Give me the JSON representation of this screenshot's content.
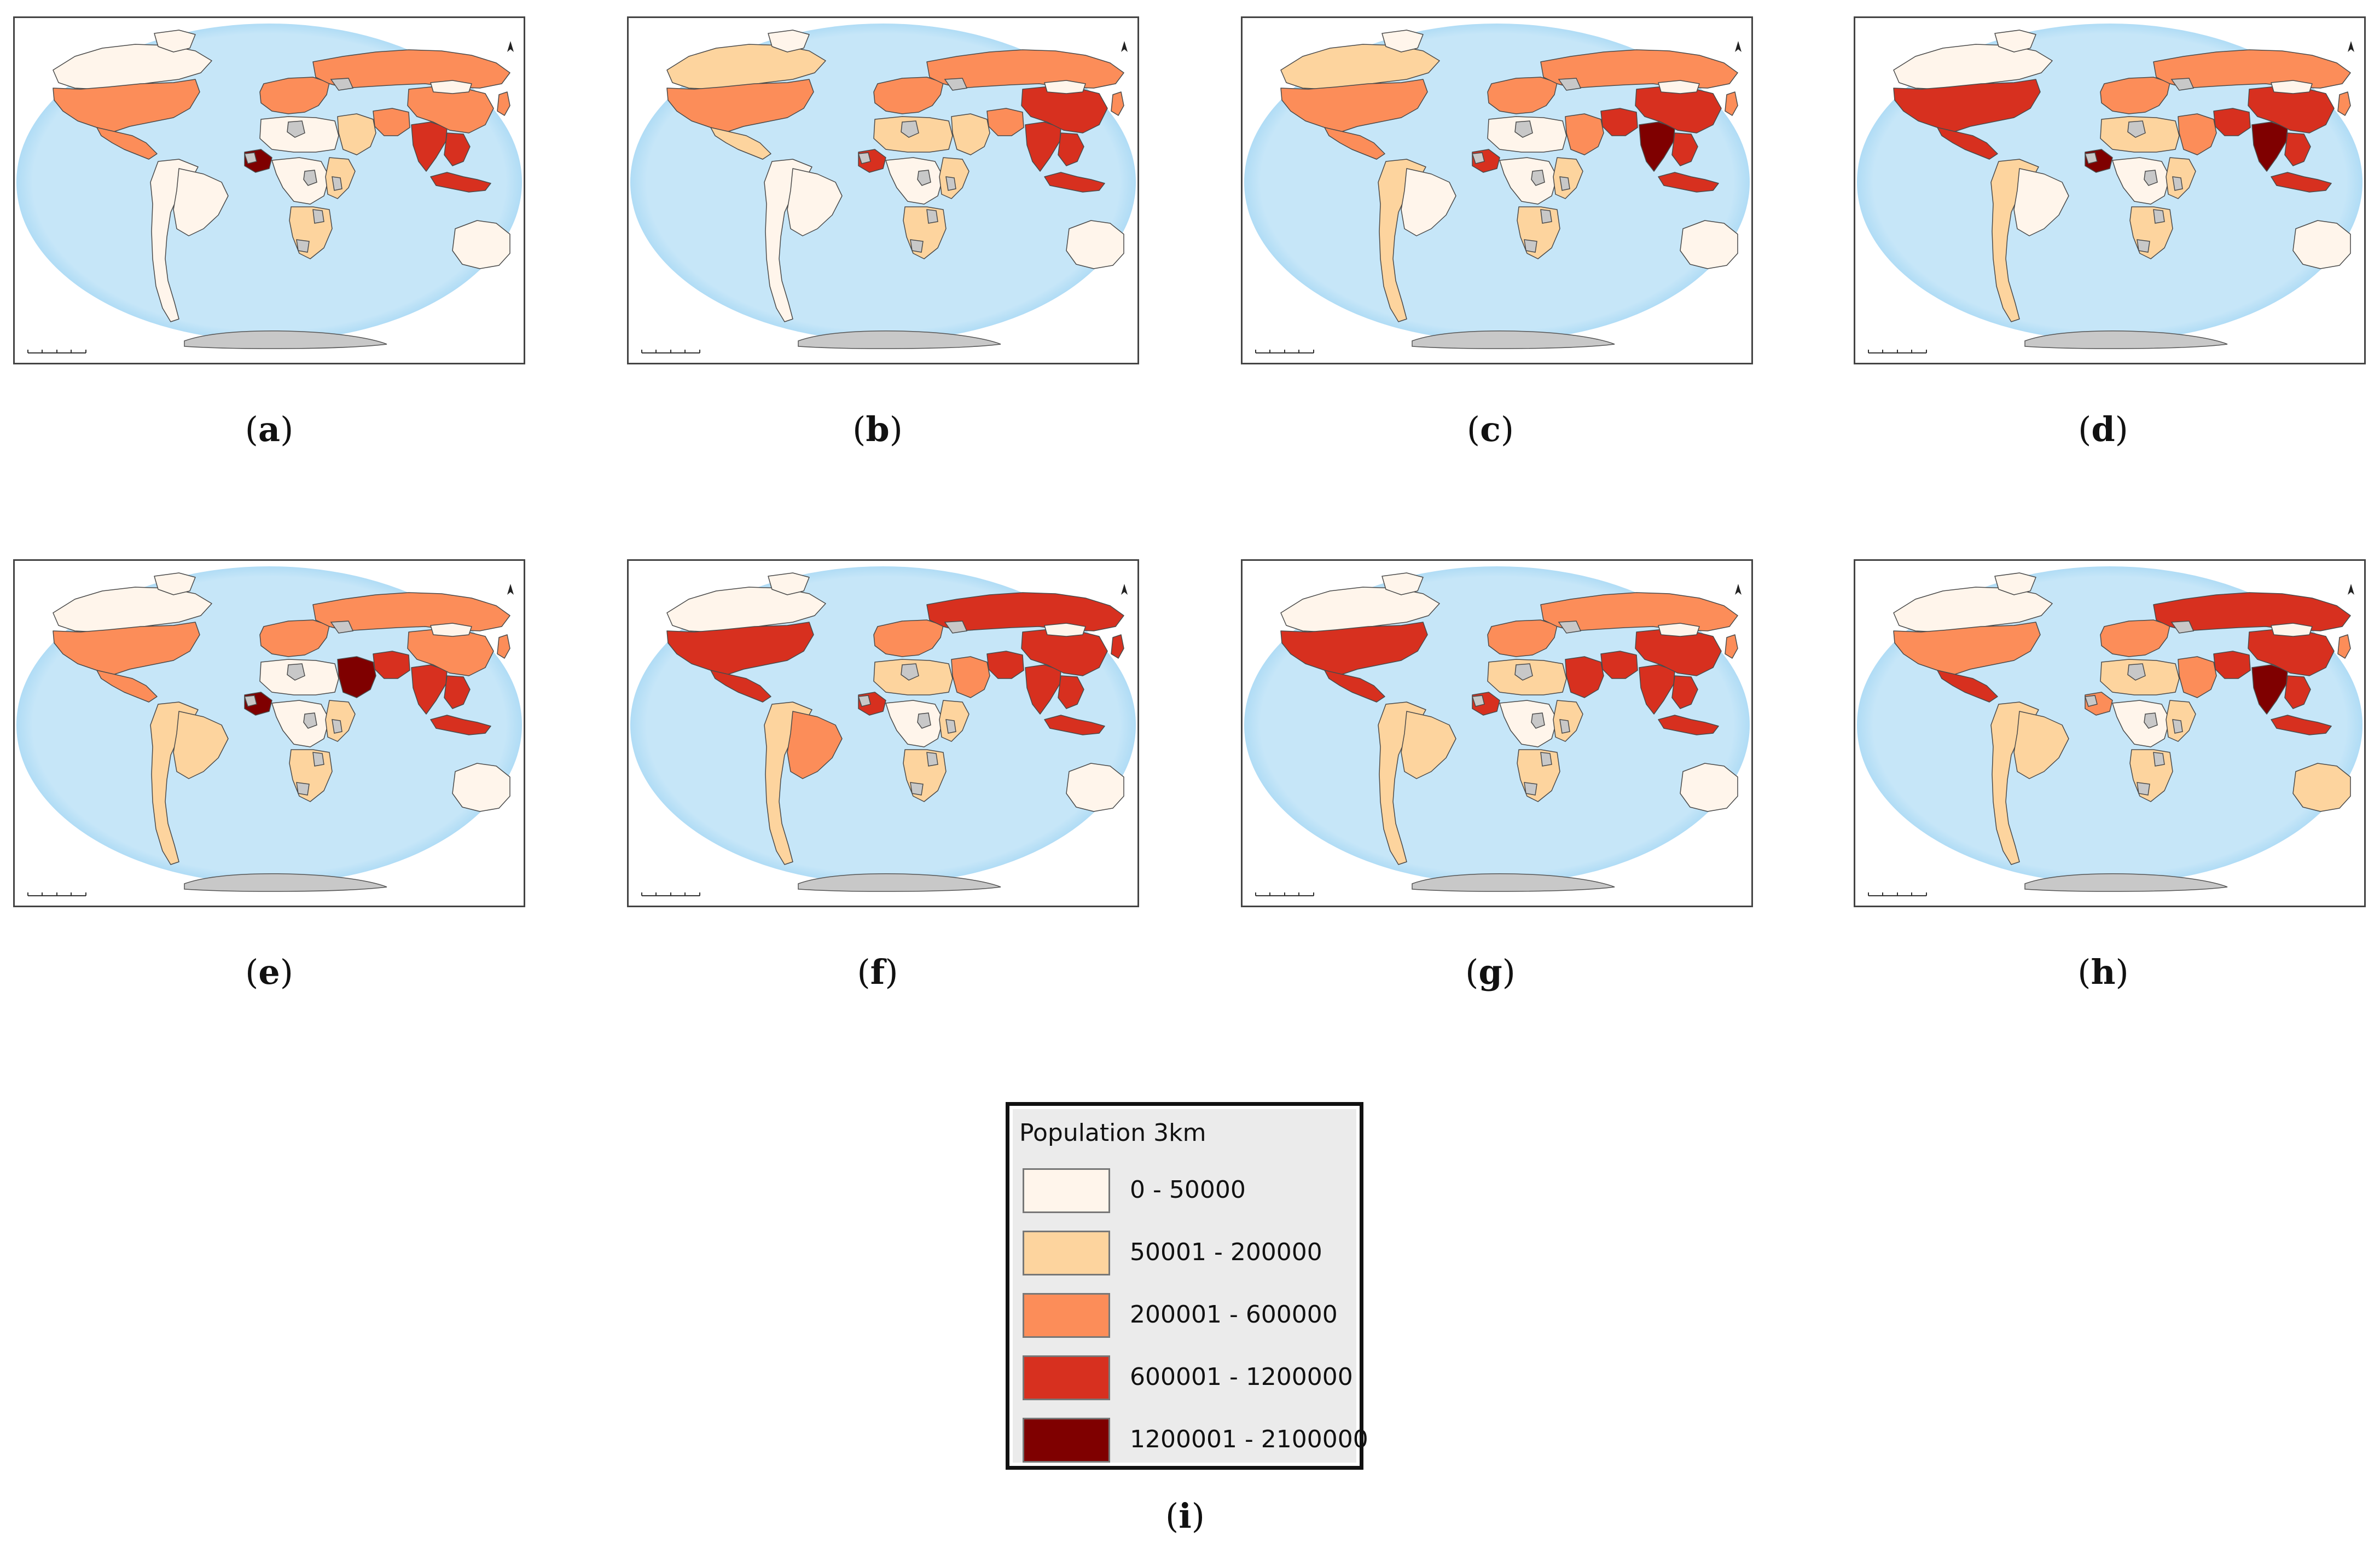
{
  "palette": {
    "class1": "#fff5eb",
    "class2": "#fdd49e",
    "class3": "#fc8d59",
    "class4": "#d7301f",
    "class5": "#7f0000",
    "nodata": "#c8c8c8",
    "ocean": "#c6e6f8",
    "ocean_edge": "#8fcdf1"
  },
  "panels": [
    {
      "caption": "a",
      "classes": {
        "usa": 3,
        "canada": 1,
        "greenland": 1,
        "mexico": 3,
        "south_america": 1,
        "brazil": 1,
        "europe": 3,
        "russia": 3,
        "north_africa": 1,
        "west_africa": 5,
        "central_africa": 1,
        "east_africa": 2,
        "southern_africa": 2,
        "middle_east": 2,
        "iran": 3,
        "india": 4,
        "china": 3,
        "southeast_asia": 4,
        "indonesia": 4,
        "japan": 3,
        "australia": 1,
        "mongolia": 1
      }
    },
    {
      "caption": "b",
      "classes": {
        "usa": 3,
        "canada": 2,
        "greenland": 1,
        "mexico": 2,
        "south_america": 1,
        "brazil": 1,
        "europe": 3,
        "russia": 3,
        "north_africa": 2,
        "west_africa": 4,
        "central_africa": 1,
        "east_africa": 2,
        "southern_africa": 2,
        "middle_east": 2,
        "iran": 3,
        "india": 4,
        "china": 4,
        "southeast_asia": 4,
        "indonesia": 4,
        "japan": 3,
        "australia": 1,
        "mongolia": 1
      }
    },
    {
      "caption": "c",
      "classes": {
        "usa": 3,
        "canada": 2,
        "greenland": 1,
        "mexico": 3,
        "south_america": 2,
        "brazil": 1,
        "europe": 3,
        "russia": 3,
        "north_africa": 1,
        "west_africa": 4,
        "central_africa": 1,
        "east_africa": 2,
        "southern_africa": 2,
        "middle_east": 3,
        "iran": 4,
        "india": 5,
        "china": 4,
        "southeast_asia": 4,
        "indonesia": 4,
        "japan": 3,
        "australia": 1,
        "mongolia": 1
      }
    },
    {
      "caption": "d",
      "classes": {
        "usa": 4,
        "canada": 1,
        "greenland": 1,
        "mexico": 4,
        "south_america": 2,
        "brazil": 1,
        "europe": 3,
        "russia": 3,
        "north_africa": 2,
        "west_africa": 5,
        "central_africa": 1,
        "east_africa": 2,
        "southern_africa": 2,
        "middle_east": 3,
        "iran": 4,
        "india": 5,
        "china": 4,
        "southeast_asia": 4,
        "indonesia": 4,
        "japan": 3,
        "australia": 1,
        "mongolia": 1
      }
    },
    {
      "caption": "e",
      "classes": {
        "usa": 3,
        "canada": 1,
        "greenland": 1,
        "mexico": 3,
        "south_america": 2,
        "brazil": 2,
        "europe": 3,
        "russia": 3,
        "north_africa": 1,
        "west_africa": 5,
        "central_africa": 1,
        "east_africa": 2,
        "southern_africa": 2,
        "middle_east": 5,
        "iran": 4,
        "india": 4,
        "china": 3,
        "southeast_asia": 4,
        "indonesia": 4,
        "japan": 3,
        "australia": 1,
        "mongolia": 1
      }
    },
    {
      "caption": "f",
      "classes": {
        "usa": 4,
        "canada": 1,
        "greenland": 1,
        "mexico": 4,
        "south_america": 2,
        "brazil": 3,
        "europe": 3,
        "russia": 4,
        "north_africa": 2,
        "west_africa": 4,
        "central_africa": 1,
        "east_africa": 2,
        "southern_africa": 2,
        "middle_east": 3,
        "iran": 4,
        "india": 4,
        "china": 4,
        "southeast_asia": 4,
        "indonesia": 4,
        "japan": 4,
        "australia": 1,
        "mongolia": 1
      }
    },
    {
      "caption": "g",
      "classes": {
        "usa": 4,
        "canada": 1,
        "greenland": 1,
        "mexico": 4,
        "south_america": 2,
        "brazil": 2,
        "europe": 3,
        "russia": 3,
        "north_africa": 2,
        "west_africa": 4,
        "central_africa": 1,
        "east_africa": 2,
        "southern_africa": 2,
        "middle_east": 4,
        "iran": 4,
        "india": 4,
        "china": 4,
        "southeast_asia": 4,
        "indonesia": 4,
        "japan": 3,
        "australia": 1,
        "mongolia": 1
      }
    },
    {
      "caption": "h",
      "classes": {
        "usa": 3,
        "canada": 1,
        "greenland": 1,
        "mexico": 4,
        "south_america": 2,
        "brazil": 2,
        "europe": 3,
        "russia": 4,
        "north_africa": 2,
        "west_africa": 3,
        "central_africa": 1,
        "east_africa": 2,
        "southern_africa": 2,
        "middle_east": 3,
        "iran": 4,
        "india": 5,
        "china": 4,
        "southeast_asia": 4,
        "indonesia": 4,
        "japan": 3,
        "australia": 2,
        "mongolia": 1
      }
    }
  ],
  "legend": {
    "title": "Population 3km",
    "caption": "i",
    "items": [
      {
        "label": "0 - 50000",
        "class": "class1"
      },
      {
        "label": "50001 - 200000",
        "class": "class2"
      },
      {
        "label": "200001 - 600000",
        "class": "class3"
      },
      {
        "label": "600001 - 1200000",
        "class": "class4"
      },
      {
        "label": "1200001 - 2100000",
        "class": "class5"
      }
    ]
  }
}
